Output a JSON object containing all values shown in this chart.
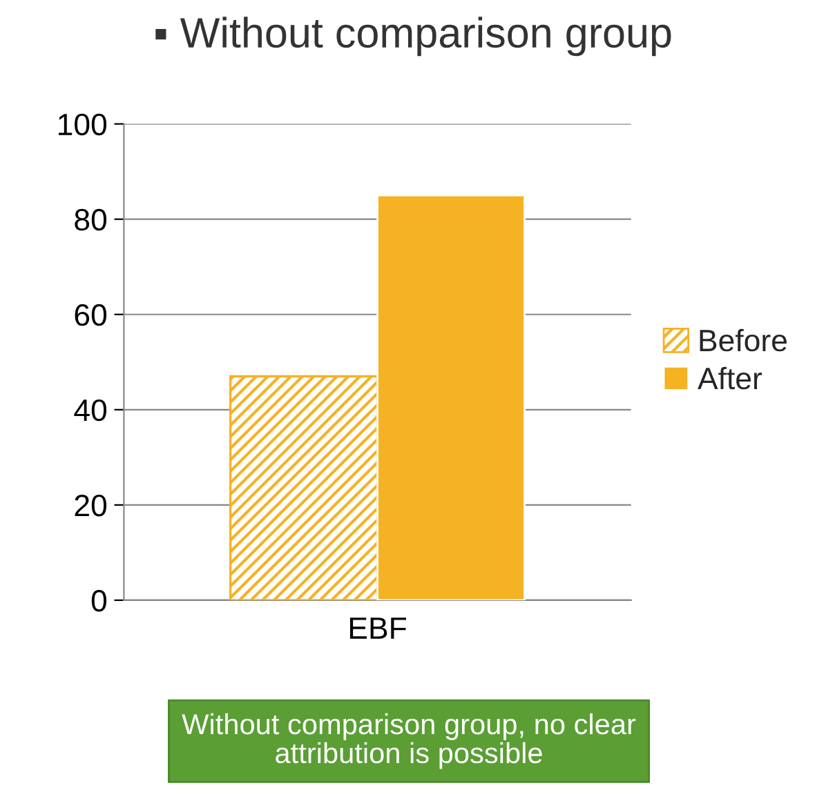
{
  "chart_data": {
    "type": "bar",
    "title": "▪ Without comparison group",
    "categories": [
      "EBF"
    ],
    "series": [
      {
        "name": "Before",
        "color": "#f5b223",
        "values": [
          47
        ]
      },
      {
        "name": "After",
        "color": "#f5b223",
        "values": [
          85
        ]
      }
    ],
    "ylim": [
      0,
      100
    ],
    "yticks": [
      0,
      20,
      40,
      60,
      80,
      100
    ],
    "grid": "y",
    "legend": "right",
    "annotations": [
      "Without comparison group, no clear attribution is possible"
    ]
  }
}
